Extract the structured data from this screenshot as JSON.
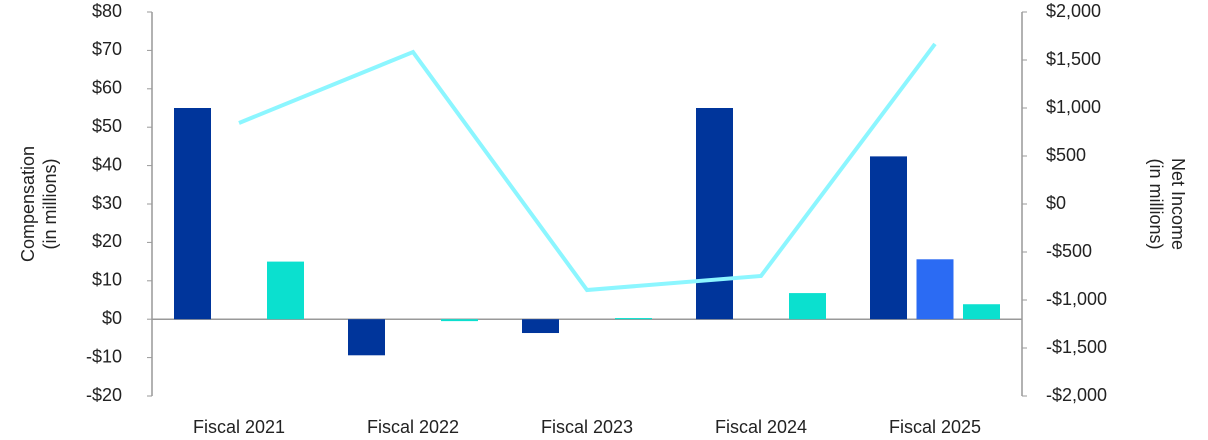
{
  "chart_data": {
    "type": "bar_line",
    "y_label": [
      "Compensation",
      "(in millions)"
    ],
    "y2_label": [
      "Net Income",
      "(in millions)"
    ],
    "categories": [
      "Fiscal 2021",
      "Fiscal 2022",
      "Fiscal 2023",
      "Fiscal 2024",
      "Fiscal 2025"
    ],
    "series": [
      {
        "type": "bar",
        "color": "#00359b",
        "values": [
          55,
          -9.4,
          -3.6,
          55,
          42.4
        ]
      },
      {
        "type": "bar",
        "color": "#2b6bf3",
        "values": [
          null,
          null,
          null,
          null,
          15.6
        ]
      },
      {
        "type": "bar",
        "color": "#0be0cf",
        "values": [
          15,
          -0.5,
          0.3,
          6.8,
          3.9
        ]
      },
      {
        "type": "line",
        "axis": "y2",
        "color": "#8cf6ff",
        "values": [
          844,
          1583,
          -896,
          -750,
          1667
        ]
      }
    ],
    "ylim": [
      -20,
      80
    ],
    "yticks": [
      {
        "value": -20,
        "label": "-$20"
      },
      {
        "value": -10,
        "label": "-$10"
      },
      {
        "value": 0,
        "label": "$0"
      },
      {
        "value": 10,
        "label": "$10"
      },
      {
        "value": 20,
        "label": "$20"
      },
      {
        "value": 30,
        "label": "$30"
      },
      {
        "value": 40,
        "label": "$40"
      },
      {
        "value": 50,
        "label": "$50"
      },
      {
        "value": 60,
        "label": "$60"
      },
      {
        "value": 70,
        "label": "$70"
      },
      {
        "value": 80,
        "label": "$80"
      }
    ],
    "y2lim": [
      -2000,
      2000
    ],
    "y2ticks": [
      {
        "value": -2000,
        "label": "-$2,000"
      },
      {
        "value": -1500,
        "label": "-$1,500"
      },
      {
        "value": -1000,
        "label": "-$1,000"
      },
      {
        "value": -500,
        "label": "-$500"
      },
      {
        "value": 0,
        "label": "$0"
      },
      {
        "value": 500,
        "label": "$500"
      },
      {
        "value": 1000,
        "label": "$1,000"
      },
      {
        "value": 1500,
        "label": "$1,500"
      },
      {
        "value": 2000,
        "label": "$2,000"
      }
    ]
  }
}
